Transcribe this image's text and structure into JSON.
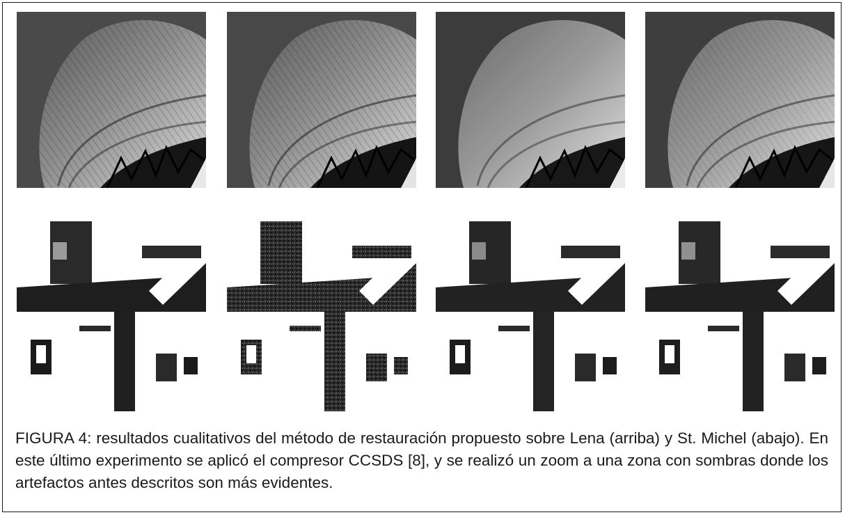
{
  "figure": {
    "caption": "FIGURA 4: resultados cualitativos del método de restauración propuesto sobre Lena (arriba) y St. Michel (abajo). En este último experimento se aplicó el compresor CCSDS [8], y se realizó un zoom a una zona con sombras donde los artefactos antes descritos son más evidentes.",
    "rows": [
      {
        "content": "Lena hat crop",
        "panels": 4
      },
      {
        "content": "St. Michel zoomed shadow region",
        "panels": 4
      }
    ]
  },
  "colors": {
    "frame": "#1a1a1a",
    "text": "#1a1a1a",
    "background": "#ffffff"
  }
}
